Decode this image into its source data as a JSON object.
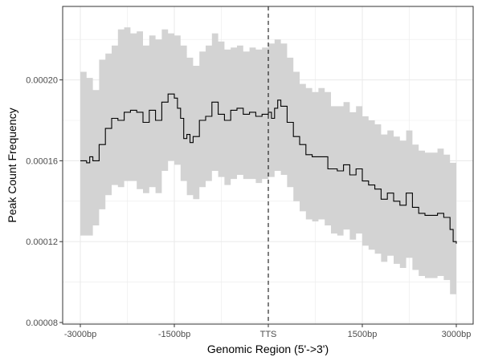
{
  "chart_data": {
    "type": "line",
    "title": "",
    "xlabel": "Genomic Region (5'->3')",
    "ylabel": "Peak Count Frequency",
    "x_range": [
      -3000,
      3000
    ],
    "y_range": [
      8e-05,
      0.00023
    ],
    "x_ticks": [
      {
        "value": -3000,
        "label": "-3000bp"
      },
      {
        "value": -1500,
        "label": "-1500bp"
      },
      {
        "value": 0,
        "label": "TTS"
      },
      {
        "value": 1500,
        "label": "1500bp"
      },
      {
        "value": 3000,
        "label": "3000bp"
      }
    ],
    "y_ticks": [
      {
        "value": 8e-05,
        "label": "0.00008"
      },
      {
        "value": 0.00012,
        "label": "0.00012"
      },
      {
        "value": 0.00016,
        "label": "0.00016"
      },
      {
        "value": 0.0002,
        "label": "0.00020"
      }
    ],
    "reference_line": {
      "x": 0,
      "style": "dashed"
    },
    "grid": true,
    "colors": {
      "ribbon": "#d3d3d3",
      "line": "#000000",
      "grid": "#ebebeb",
      "border": "#333333"
    },
    "series": [
      {
        "points": [
          [
            -3000,
            0.00016
          ],
          [
            -2900,
            0.000159
          ],
          [
            -2850,
            0.000162
          ],
          [
            -2800,
            0.00016
          ],
          [
            -2700,
            0.000168
          ],
          [
            -2600,
            0.000176
          ],
          [
            -2500,
            0.000181
          ],
          [
            -2400,
            0.00018
          ],
          [
            -2300,
            0.000184
          ],
          [
            -2200,
            0.000185
          ],
          [
            -2100,
            0.000184
          ],
          [
            -2000,
            0.000179
          ],
          [
            -1900,
            0.000185
          ],
          [
            -1800,
            0.00018
          ],
          [
            -1700,
            0.000189
          ],
          [
            -1600,
            0.000193
          ],
          [
            -1500,
            0.000191
          ],
          [
            -1450,
            0.000186
          ],
          [
            -1400,
            0.000181
          ],
          [
            -1350,
            0.000171
          ],
          [
            -1300,
            0.000173
          ],
          [
            -1250,
            0.000169
          ],
          [
            -1200,
            0.000172
          ],
          [
            -1100,
            0.00018
          ],
          [
            -1000,
            0.000182
          ],
          [
            -900,
            0.000189
          ],
          [
            -800,
            0.000183
          ],
          [
            -700,
            0.00018
          ],
          [
            -600,
            0.000185
          ],
          [
            -500,
            0.000186
          ],
          [
            -400,
            0.000183
          ],
          [
            -300,
            0.000184
          ],
          [
            -200,
            0.000182
          ],
          [
            -100,
            0.000183
          ],
          [
            0,
            0.000184
          ],
          [
            50,
            0.000181
          ],
          [
            100,
            0.000186
          ],
          [
            150,
            0.00019
          ],
          [
            200,
            0.000187
          ],
          [
            300,
            0.000179
          ],
          [
            400,
            0.000172
          ],
          [
            500,
            0.000168
          ],
          [
            600,
            0.000163
          ],
          [
            700,
            0.000162
          ],
          [
            900,
            0.000162
          ],
          [
            950,
            0.000156
          ],
          [
            1100,
            0.000155
          ],
          [
            1200,
            0.000158
          ],
          [
            1300,
            0.000153
          ],
          [
            1400,
            0.000156
          ],
          [
            1500,
            0.00015
          ],
          [
            1600,
            0.000148
          ],
          [
            1700,
            0.000146
          ],
          [
            1800,
            0.000141
          ],
          [
            1900,
            0.000144
          ],
          [
            2000,
            0.00014
          ],
          [
            2100,
            0.000138
          ],
          [
            2200,
            0.000144
          ],
          [
            2300,
            0.000137
          ],
          [
            2400,
            0.000134
          ],
          [
            2500,
            0.000133
          ],
          [
            2600,
            0.000133
          ],
          [
            2700,
            0.000134
          ],
          [
            2800,
            0.000132
          ],
          [
            2900,
            0.000126
          ],
          [
            2950,
            0.00012
          ],
          [
            3000,
            0.000119
          ]
        ],
        "ribbon": [
          [
            -3000,
            0.000123,
            0.000204
          ],
          [
            -2900,
            0.000123,
            0.000201
          ],
          [
            -2800,
            0.000128,
            0.000195
          ],
          [
            -2700,
            0.000136,
            0.00021
          ],
          [
            -2600,
            0.000143,
            0.000213
          ],
          [
            -2500,
            0.000148,
            0.000217
          ],
          [
            -2400,
            0.000147,
            0.000225
          ],
          [
            -2300,
            0.00015,
            0.000226
          ],
          [
            -2200,
            0.00015,
            0.000223
          ],
          [
            -2100,
            0.000146,
            0.000224
          ],
          [
            -2000,
            0.000144,
            0.000217
          ],
          [
            -1900,
            0.000147,
            0.000222
          ],
          [
            -1800,
            0.000144,
            0.00022
          ],
          [
            -1700,
            0.000155,
            0.000225
          ],
          [
            -1600,
            0.00016,
            0.000223
          ],
          [
            -1500,
            0.000158,
            0.000222
          ],
          [
            -1400,
            0.00015,
            0.000217
          ],
          [
            -1300,
            0.000143,
            0.000211
          ],
          [
            -1200,
            0.000141,
            0.000207
          ],
          [
            -1100,
            0.000147,
            0.000214
          ],
          [
            -1000,
            0.00015,
            0.000217
          ],
          [
            -900,
            0.000155,
            0.000223
          ],
          [
            -800,
            0.000152,
            0.000219
          ],
          [
            -700,
            0.000148,
            0.000215
          ],
          [
            -600,
            0.000151,
            0.000216
          ],
          [
            -500,
            0.000153,
            0.000217
          ],
          [
            -400,
            0.000151,
            0.000214
          ],
          [
            -300,
            0.000151,
            0.000216
          ],
          [
            -200,
            0.000149,
            0.000215
          ],
          [
            -100,
            0.000151,
            0.000216
          ],
          [
            0,
            0.000152,
            0.000218
          ],
          [
            100,
            0.000155,
            0.00022
          ],
          [
            200,
            0.000153,
            0.000218
          ],
          [
            300,
            0.000147,
            0.000211
          ],
          [
            400,
            0.00014,
            0.000204
          ],
          [
            500,
            0.000135,
            0.000198
          ],
          [
            600,
            0.000131,
            0.000196
          ],
          [
            700,
            0.00013,
            0.000194
          ],
          [
            800,
            0.000131,
            0.000196
          ],
          [
            900,
            0.000128,
            0.000194
          ],
          [
            1000,
            0.000124,
            0.000187
          ],
          [
            1100,
            0.000123,
            0.000187
          ],
          [
            1200,
            0.000126,
            0.000189
          ],
          [
            1300,
            0.000121,
            0.000184
          ],
          [
            1400,
            0.000124,
            0.000187
          ],
          [
            1500,
            0.000118,
            0.000182
          ],
          [
            1600,
            0.000116,
            0.00018
          ],
          [
            1700,
            0.000114,
            0.000178
          ],
          [
            1800,
            0.00011,
            0.000173
          ],
          [
            1900,
            0.000113,
            0.000175
          ],
          [
            2000,
            0.000109,
            0.000172
          ],
          [
            2100,
            0.000107,
            0.00017
          ],
          [
            2200,
            0.000112,
            0.000175
          ],
          [
            2300,
            0.000106,
            0.000168
          ],
          [
            2400,
            0.000103,
            0.000165
          ],
          [
            2500,
            0.000102,
            0.000164
          ],
          [
            2600,
            0.000102,
            0.000164
          ],
          [
            2700,
            0.000103,
            0.000166
          ],
          [
            2800,
            0.000101,
            0.000163
          ],
          [
            2900,
            9.4e-05,
            0.000159
          ],
          [
            3000,
            8.6e-05,
            0.000158
          ]
        ]
      }
    ]
  }
}
